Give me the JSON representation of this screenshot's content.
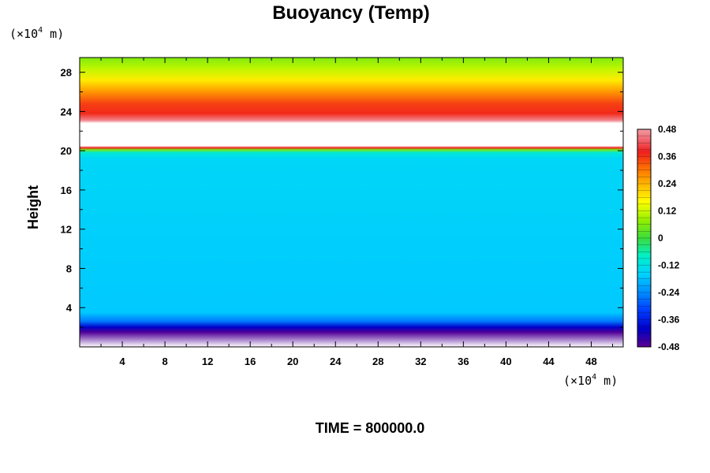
{
  "chart_data": {
    "type": "heatmap",
    "title": "Buoyancy (Temp)",
    "ylabel": "Height",
    "xlabel": "",
    "x_unit": {
      "prefix": "(×10",
      "exp": "4",
      "suffix": " m)"
    },
    "y_unit": {
      "prefix": "(×10",
      "exp": "4",
      "suffix": " m)"
    },
    "xlim": [
      0,
      51
    ],
    "ylim": [
      0,
      29.5
    ],
    "x_ticks": [
      4,
      8,
      12,
      16,
      20,
      24,
      28,
      32,
      36,
      40,
      44,
      48
    ],
    "y_ticks": [
      4,
      8,
      12,
      16,
      20,
      24,
      28
    ],
    "x_tick_labels": [
      "4",
      "8",
      "12",
      "16",
      "20",
      "24",
      "28",
      "32",
      "36",
      "40",
      "44",
      "48"
    ],
    "y_tick_labels": [
      "4",
      "8",
      "12",
      "16",
      "20",
      "24",
      "28"
    ],
    "height_profile": [
      {
        "y": 0.0,
        "value": null
      },
      {
        "y": 1.5,
        "value": -0.47
      },
      {
        "y": 2.0,
        "value": -0.4
      },
      {
        "y": 2.6,
        "value": -0.26
      },
      {
        "y": 3.5,
        "value": -0.17
      },
      {
        "y": 19.2,
        "value": -0.15
      },
      {
        "y": 19.8,
        "value": -0.1
      },
      {
        "y": 20.1,
        "value": 0.05
      },
      {
        "y": 20.3,
        "value": 0.38
      },
      {
        "y": 20.5,
        "value": null
      },
      {
        "y": 22.8,
        "value": null
      },
      {
        "y": 23.1,
        "value": 0.46
      },
      {
        "y": 23.8,
        "value": 0.37
      },
      {
        "y": 24.8,
        "value": 0.35
      },
      {
        "y": 26.0,
        "value": 0.27
      },
      {
        "y": 27.2,
        "value": 0.18
      },
      {
        "y": 28.4,
        "value": 0.11
      },
      {
        "y": 29.5,
        "value": 0.06
      }
    ],
    "colorbar": {
      "min": -0.48,
      "max": 0.48,
      "levels": 32,
      "tick_values": [
        0.48,
        0.36,
        0.24,
        0.12,
        0,
        -0.12,
        -0.24,
        -0.36,
        -0.48
      ],
      "tick_labels": [
        "0.48",
        "0.36",
        "0.24",
        "0.12",
        "0",
        "-0.12",
        "-0.24",
        "-0.36",
        "-0.48"
      ]
    },
    "colors": {
      "cold": "#5a0090",
      "neutral": "#00d2ff",
      "warm": "#ff2020",
      "hot": "#f39aa0"
    },
    "footer": "TIME = 800000.0"
  }
}
